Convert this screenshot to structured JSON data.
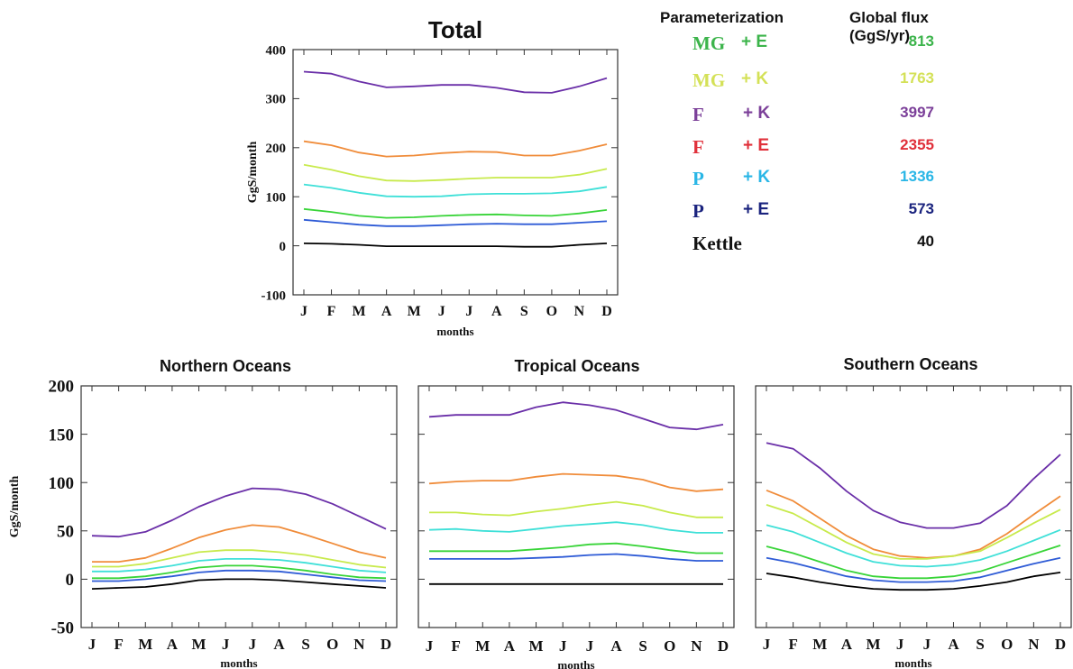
{
  "legend": {
    "header_param": "Parameterization",
    "header_flux": "Global flux (GgS/yr)",
    "rows": [
      {
        "a": "MG",
        "b": "+ E",
        "value": "813",
        "color": "#3cb44b"
      },
      {
        "a": "MG",
        "b": "+ K",
        "value": "1763",
        "color": "#d4e157"
      },
      {
        "a": "F",
        "b": "+ K",
        "value": "3997",
        "color": "#7b3f99"
      },
      {
        "a": "F",
        "b": "+ E",
        "value": "2355",
        "color": "#e0303a"
      },
      {
        "a": "P",
        "b": "+ K",
        "value": "1336",
        "color": "#29b6e6"
      },
      {
        "a": "P",
        "b": "+ E",
        "value": "573",
        "color": "#1a237e"
      },
      {
        "a": "Kettle",
        "b": "",
        "value": "40",
        "color": "#111111"
      }
    ]
  },
  "series_colors": {
    "F + K": "#6a2fa8",
    "F + E": "#f08c3a",
    "MG + K": "#c8ea4c",
    "P + K": "#3fe0d8",
    "MG + E": "#38d438",
    "P + E": "#2e5bd6",
    "Kettle": "#000000"
  },
  "chart_data": [
    {
      "type": "line",
      "title": "Total",
      "xlabel": "months",
      "ylabel": "GgS/month",
      "ylim": [
        -100,
        400
      ],
      "yticks": [
        -100,
        0,
        100,
        200,
        300,
        400
      ],
      "categories": [
        "J",
        "F",
        "M",
        "A",
        "M",
        "J",
        "J",
        "A",
        "S",
        "O",
        "N",
        "D"
      ],
      "series": [
        {
          "name": "F + K",
          "values": [
            355,
            351,
            335,
            323,
            325,
            328,
            328,
            322,
            313,
            312,
            325,
            342
          ]
        },
        {
          "name": "F + E",
          "values": [
            213,
            205,
            190,
            182,
            184,
            189,
            192,
            191,
            184,
            184,
            194,
            207
          ]
        },
        {
          "name": "MG + K",
          "values": [
            165,
            155,
            142,
            133,
            132,
            134,
            137,
            139,
            139,
            139,
            145,
            157
          ]
        },
        {
          "name": "P + K",
          "values": [
            125,
            118,
            108,
            101,
            100,
            101,
            105,
            106,
            106,
            107,
            111,
            120
          ]
        },
        {
          "name": "MG + E",
          "values": [
            75,
            69,
            61,
            57,
            58,
            61,
            63,
            64,
            62,
            61,
            66,
            73
          ]
        },
        {
          "name": "P + E",
          "values": [
            53,
            48,
            43,
            40,
            40,
            42,
            44,
            45,
            44,
            44,
            47,
            50
          ]
        },
        {
          "name": "Kettle",
          "values": [
            5,
            4,
            2,
            -1,
            -1,
            -1,
            -1,
            -1,
            -2,
            -2,
            2,
            5
          ]
        }
      ]
    },
    {
      "type": "line",
      "title": "Northern Oceans",
      "xlabel": "months",
      "ylabel": "GgS/month",
      "ylim": [
        -50,
        200
      ],
      "yticks": [
        -50,
        0,
        50,
        100,
        150,
        200
      ],
      "categories": [
        "J",
        "F",
        "M",
        "A",
        "M",
        "J",
        "J",
        "A",
        "S",
        "O",
        "N",
        "D"
      ],
      "series": [
        {
          "name": "F + K",
          "values": [
            45,
            44,
            49,
            61,
            75,
            86,
            94,
            93,
            88,
            78,
            65,
            52
          ]
        },
        {
          "name": "F + E",
          "values": [
            18,
            18,
            22,
            32,
            43,
            51,
            56,
            54,
            46,
            37,
            28,
            22
          ]
        },
        {
          "name": "MG + K",
          "values": [
            13,
            13,
            16,
            22,
            28,
            30,
            30,
            28,
            25,
            20,
            15,
            12
          ]
        },
        {
          "name": "P + K",
          "values": [
            8,
            8,
            10,
            14,
            19,
            21,
            21,
            20,
            17,
            13,
            9,
            7
          ]
        },
        {
          "name": "MG + E",
          "values": [
            1,
            1,
            3,
            7,
            12,
            14,
            14,
            12,
            9,
            5,
            2,
            1
          ]
        },
        {
          "name": "P + E",
          "values": [
            -2,
            -2,
            0,
            3,
            7,
            9,
            9,
            8,
            5,
            2,
            -1,
            -2
          ]
        },
        {
          "name": "Kettle",
          "values": [
            -10,
            -9,
            -8,
            -5,
            -1,
            0,
            0,
            -1,
            -3,
            -5,
            -7,
            -9
          ]
        }
      ]
    },
    {
      "type": "line",
      "title": "Tropical Oceans",
      "xlabel": "months",
      "ylabel": "",
      "ylim": [
        -50,
        200
      ],
      "yticks": [],
      "categories": [
        "J",
        "F",
        "M",
        "A",
        "M",
        "J",
        "J",
        "A",
        "S",
        "O",
        "N",
        "D"
      ],
      "series": [
        {
          "name": "F + K",
          "values": [
            168,
            170,
            170,
            170,
            178,
            183,
            180,
            175,
            166,
            157,
            155,
            160
          ]
        },
        {
          "name": "F + E",
          "values": [
            99,
            101,
            102,
            102,
            106,
            109,
            108,
            107,
            103,
            95,
            91,
            93
          ]
        },
        {
          "name": "MG + K",
          "values": [
            69,
            69,
            67,
            66,
            70,
            73,
            77,
            80,
            76,
            69,
            64,
            64
          ]
        },
        {
          "name": "P + K",
          "values": [
            51,
            52,
            50,
            49,
            52,
            55,
            57,
            59,
            56,
            51,
            48,
            48
          ]
        },
        {
          "name": "MG + E",
          "values": [
            29,
            29,
            29,
            29,
            31,
            33,
            36,
            37,
            34,
            30,
            27,
            27
          ]
        },
        {
          "name": "P + E",
          "values": [
            21,
            21,
            21,
            21,
            22,
            23,
            25,
            26,
            24,
            21,
            19,
            19
          ]
        },
        {
          "name": "Kettle",
          "values": [
            -5,
            -5,
            -5,
            -5,
            -5,
            -5,
            -5,
            -5,
            -5,
            -5,
            -5,
            -5
          ]
        }
      ]
    },
    {
      "type": "line",
      "title": "Southern Oceans",
      "xlabel": "months",
      "ylabel": "",
      "ylim": [
        -50,
        200
      ],
      "yticks": [],
      "categories": [
        "J",
        "F",
        "M",
        "A",
        "M",
        "J",
        "J",
        "A",
        "S",
        "O",
        "N",
        "D"
      ],
      "series": [
        {
          "name": "F + K",
          "values": [
            141,
            135,
            115,
            91,
            71,
            59,
            53,
            53,
            58,
            76,
            104,
            129
          ]
        },
        {
          "name": "F + E",
          "values": [
            92,
            81,
            63,
            45,
            31,
            24,
            22,
            24,
            31,
            47,
            67,
            86
          ]
        },
        {
          "name": "MG + K",
          "values": [
            77,
            68,
            53,
            38,
            26,
            21,
            21,
            24,
            29,
            43,
            58,
            72
          ]
        },
        {
          "name": "P + K",
          "values": [
            56,
            49,
            38,
            27,
            18,
            14,
            13,
            15,
            20,
            29,
            40,
            51
          ]
        },
        {
          "name": "MG + E",
          "values": [
            34,
            27,
            18,
            9,
            3,
            1,
            1,
            3,
            8,
            17,
            26,
            35
          ]
        },
        {
          "name": "P + E",
          "values": [
            22,
            17,
            10,
            3,
            -1,
            -3,
            -3,
            -2,
            2,
            9,
            16,
            22
          ]
        },
        {
          "name": "Kettle",
          "values": [
            6,
            2,
            -3,
            -7,
            -10,
            -11,
            -11,
            -10,
            -7,
            -3,
            3,
            7
          ]
        }
      ]
    }
  ]
}
